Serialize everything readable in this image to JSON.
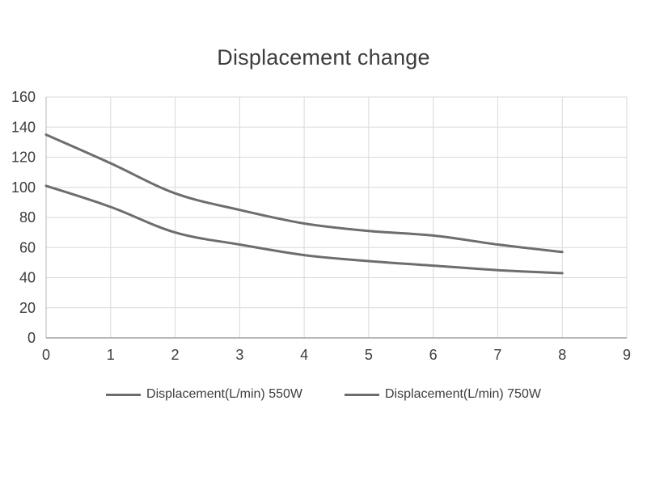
{
  "chart_data": {
    "type": "line",
    "title": "Displacement change",
    "x": [
      0,
      1,
      2,
      3,
      4,
      5,
      6,
      7,
      8
    ],
    "series": [
      {
        "name": "Displacement(L/min) 550W",
        "values": [
          101,
          87,
          70,
          62,
          55,
          51,
          48,
          45,
          43
        ],
        "color": "#6d6d6d"
      },
      {
        "name": "Displacement(L/min) 750W",
        "values": [
          135,
          116,
          96,
          85,
          76,
          71,
          68,
          62,
          57
        ],
        "color": "#6d6d6d"
      }
    ],
    "xlim": [
      0,
      9
    ],
    "ylim": [
      0,
      160
    ],
    "x_ticks": [
      "0",
      "1",
      "2",
      "3",
      "4",
      "5",
      "6",
      "7",
      "8",
      "9"
    ],
    "y_ticks": [
      "0",
      "20",
      "40",
      "60",
      "80",
      "100",
      "120",
      "140",
      "160"
    ],
    "grid": true,
    "legend_position": "bottom",
    "colors": {
      "text": "#3d3d3d",
      "grid": "#d9d9d9",
      "axis_left": "#b8b8b8",
      "axis_bottom": "#a0a0a0",
      "line": "#6d6d6d"
    }
  }
}
